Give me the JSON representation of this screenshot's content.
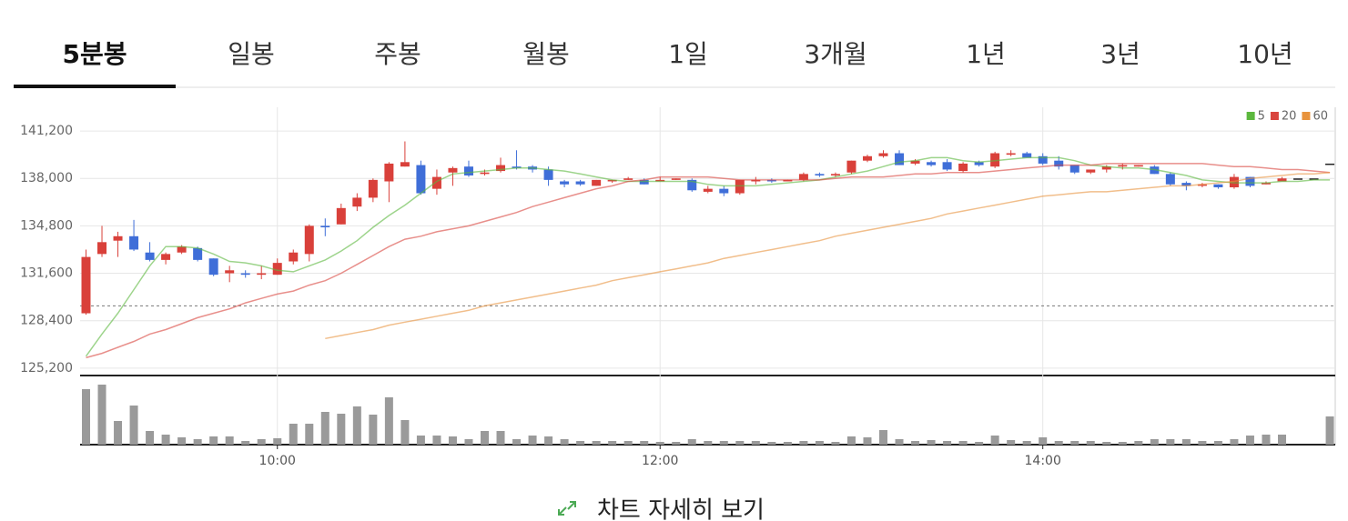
{
  "tabs": [
    "5분봉",
    "일봉",
    "주봉",
    "월봉",
    "1일",
    "3개월",
    "1년",
    "3년",
    "10년"
  ],
  "selected_tab": 0,
  "footer_link": "차트 자세히 보기",
  "chart_data": {
    "type": "candlestick",
    "categories": [
      null,
      null,
      null,
      null,
      null,
      null,
      null,
      null,
      null,
      null,
      null,
      null,
      "10:00",
      null,
      null,
      null,
      null,
      null,
      null,
      null,
      null,
      null,
      null,
      null,
      null,
      null,
      null,
      null,
      null,
      null,
      null,
      null,
      null,
      null,
      null,
      null,
      "12:00",
      null,
      null,
      null,
      null,
      null,
      null,
      null,
      null,
      null,
      null,
      null,
      null,
      null,
      null,
      null,
      null,
      null,
      null,
      null,
      null,
      null,
      null,
      null,
      "14:00",
      null,
      null,
      null,
      null,
      null,
      null,
      null,
      null,
      null,
      null,
      null,
      null,
      null,
      null,
      null,
      null,
      null,
      null
    ],
    "open": [
      128900,
      132900,
      133800,
      134100,
      133000,
      132500,
      133000,
      133300,
      132600,
      131600,
      131600,
      131500,
      131500,
      132400,
      132900,
      134800,
      134900,
      136100,
      136700,
      137800,
      138800,
      138900,
      137300,
      138400,
      138800,
      138300,
      138500,
      138800,
      138800,
      138600,
      137800,
      137800,
      137500,
      137800,
      137900,
      137900,
      137800,
      137900,
      137900,
      137100,
      137300,
      137000,
      137800,
      137900,
      137800,
      137900,
      138300,
      138200,
      138400,
      139200,
      139500,
      139700,
      139000,
      139100,
      139100,
      138500,
      139100,
      138800,
      139600,
      139700,
      139500,
      139200,
      138900,
      138400,
      138600,
      138800,
      138800,
      138800,
      138300,
      137700,
      137500,
      137600,
      137400,
      138100,
      137600,
      137800,
      138000,
      138000,
      139000
    ],
    "high": [
      133200,
      134800,
      134400,
      135200,
      133700,
      133000,
      133500,
      133400,
      132600,
      132100,
      131800,
      132100,
      132600,
      133200,
      134900,
      135300,
      136300,
      137000,
      138000,
      139100,
      140500,
      139200,
      138600,
      138800,
      139200,
      138600,
      139400,
      139900,
      138900,
      138800,
      137900,
      137900,
      137900,
      137900,
      138100,
      138000,
      138100,
      138000,
      138000,
      137500,
      137500,
      137900,
      138100,
      138000,
      137900,
      138400,
      138400,
      138400,
      139200,
      139600,
      139900,
      139900,
      139300,
      139200,
      139300,
      139100,
      139200,
      139800,
      139900,
      139800,
      139700,
      139500,
      138900,
      138600,
      138900,
      139000,
      138900,
      138900,
      138400,
      137800,
      137700,
      137600,
      138300,
      138100,
      137800,
      138100,
      138000,
      138000,
      139000
    ],
    "low": [
      128800,
      132700,
      132700,
      133100,
      132400,
      132200,
      132900,
      132400,
      131400,
      131000,
      131300,
      131200,
      131500,
      132200,
      132400,
      134100,
      134900,
      135800,
      136400,
      136400,
      138800,
      136900,
      136900,
      137500,
      138100,
      138200,
      138400,
      138600,
      138400,
      137500,
      137400,
      137500,
      137500,
      137700,
      137900,
      137600,
      137800,
      137900,
      137100,
      137000,
      136800,
      136900,
      137600,
      137700,
      137800,
      137800,
      138100,
      138100,
      138300,
      139100,
      139400,
      138900,
      138900,
      138800,
      138500,
      138400,
      138800,
      138700,
      139500,
      139400,
      138900,
      138600,
      138300,
      138300,
      138400,
      138600,
      138800,
      138300,
      137500,
      137200,
      137400,
      137300,
      137300,
      137400,
      137600,
      137800,
      138000,
      138000,
      139000
    ],
    "close": [
      132700,
      133700,
      134100,
      133200,
      132500,
      132900,
      133400,
      132500,
      131500,
      131800,
      131500,
      131600,
      132300,
      133000,
      134800,
      134700,
      136000,
      136700,
      137900,
      139000,
      139100,
      137000,
      138100,
      138700,
      138200,
      138400,
      138900,
      138700,
      138600,
      137900,
      137600,
      137600,
      137900,
      137900,
      138000,
      137600,
      137900,
      138000,
      137200,
      137300,
      137000,
      137900,
      137900,
      137800,
      137900,
      138300,
      138200,
      138300,
      139200,
      139500,
      139700,
      138900,
      139200,
      138900,
      138600,
      139000,
      138900,
      139700,
      139700,
      139400,
      139000,
      138800,
      138400,
      138600,
      138800,
      138900,
      138900,
      138300,
      137600,
      137500,
      137600,
      137400,
      138100,
      137500,
      137700,
      138000,
      138000,
      138000,
      139000
    ],
    "up_color": "#d9403a",
    "down_color": "#3f6ed8",
    "flat_color": "#222222",
    "ylim": [
      124700,
      142800
    ],
    "yticks": [
      {
        "value": 125200,
        "label": "125,200"
      },
      {
        "value": 128400,
        "label": "128,400"
      },
      {
        "value": 131600,
        "label": "131,600"
      },
      {
        "value": 134800,
        "label": "134,800"
      },
      {
        "value": 138000,
        "label": "138,000"
      },
      {
        "value": 141200,
        "label": "141,200"
      }
    ],
    "grid": true,
    "legend": "top-right",
    "reference_line": 129400,
    "series": [
      {
        "name": "5",
        "color": "#5cb83e",
        "values": [
          126000,
          127500,
          128900,
          130500,
          132100,
          133400,
          133400,
          133300,
          132900,
          132400,
          132300,
          132100,
          131800,
          131700,
          132100,
          132500,
          133100,
          133800,
          134700,
          135500,
          136200,
          137000,
          137800,
          138300,
          138400,
          138500,
          138600,
          138700,
          138700,
          138600,
          138500,
          138300,
          138100,
          137900,
          137800,
          137800,
          137800,
          137800,
          137800,
          137600,
          137500,
          137500,
          137500,
          137600,
          137700,
          137800,
          137900,
          138100,
          138300,
          138500,
          138800,
          139100,
          139200,
          139400,
          139400,
          139200,
          139100,
          139200,
          139300,
          139400,
          139400,
          139400,
          139200,
          138900,
          138800,
          138700,
          138700,
          138600,
          138400,
          138200,
          137900,
          137800,
          137700,
          137700,
          137700,
          137800,
          137800,
          137900,
          137900
        ]
      },
      {
        "name": "20",
        "color": "#d9453e",
        "values": [
          125900,
          126200,
          126600,
          127000,
          127500,
          127800,
          128200,
          128600,
          128900,
          129200,
          129600,
          129900,
          130200,
          130400,
          130800,
          131100,
          131600,
          132200,
          132800,
          133400,
          133900,
          134100,
          134400,
          134600,
          134800,
          135100,
          135400,
          135700,
          136100,
          136400,
          136700,
          137000,
          137300,
          137500,
          137800,
          137900,
          138100,
          138100,
          138100,
          138100,
          138000,
          137900,
          137900,
          137900,
          137900,
          137900,
          137900,
          138000,
          138100,
          138100,
          138100,
          138200,
          138300,
          138300,
          138400,
          138400,
          138400,
          138500,
          138600,
          138700,
          138800,
          138900,
          138900,
          138900,
          139000,
          139000,
          139000,
          139000,
          139000,
          139000,
          139000,
          138900,
          138800,
          138800,
          138700,
          138600,
          138600,
          138500,
          138400
        ]
      },
      {
        "name": "60",
        "color": "#e8933d",
        "values": [
          null,
          null,
          null,
          null,
          null,
          null,
          null,
          null,
          null,
          null,
          null,
          null,
          null,
          null,
          null,
          127200,
          127400,
          127600,
          127800,
          128100,
          128300,
          128500,
          128700,
          128900,
          129100,
          129400,
          129600,
          129800,
          130000,
          130200,
          130400,
          130600,
          130800,
          131100,
          131300,
          131500,
          131700,
          131900,
          132100,
          132300,
          132600,
          132800,
          133000,
          133200,
          133400,
          133600,
          133800,
          134100,
          134300,
          134500,
          134700,
          134900,
          135100,
          135300,
          135600,
          135800,
          136000,
          136200,
          136400,
          136600,
          136800,
          136900,
          137000,
          137100,
          137100,
          137200,
          137300,
          137400,
          137500,
          137500,
          137600,
          137700,
          137800,
          138000,
          138100,
          138200,
          138300,
          138300,
          138400
        ]
      }
    ],
    "volume": {
      "color": "#9a9a9a",
      "ylim": [
        0,
        76
      ],
      "values": [
        61,
        66,
        26,
        43,
        15,
        11,
        8,
        6,
        9,
        9,
        4,
        6,
        7,
        23,
        23,
        36,
        34,
        42,
        33,
        52,
        27,
        10,
        10,
        9,
        6,
        15,
        15,
        6,
        10,
        9,
        6,
        4,
        4,
        4,
        4,
        4,
        3,
        3,
        6,
        4,
        4,
        4,
        4,
        3,
        3,
        4,
        4,
        3,
        9,
        8,
        16,
        6,
        4,
        5,
        4,
        4,
        3,
        10,
        5,
        4,
        8,
        4,
        4,
        4,
        3,
        3,
        4,
        6,
        6,
        6,
        4,
        4,
        6,
        10,
        11,
        11,
        0,
        0,
        31
      ]
    }
  }
}
